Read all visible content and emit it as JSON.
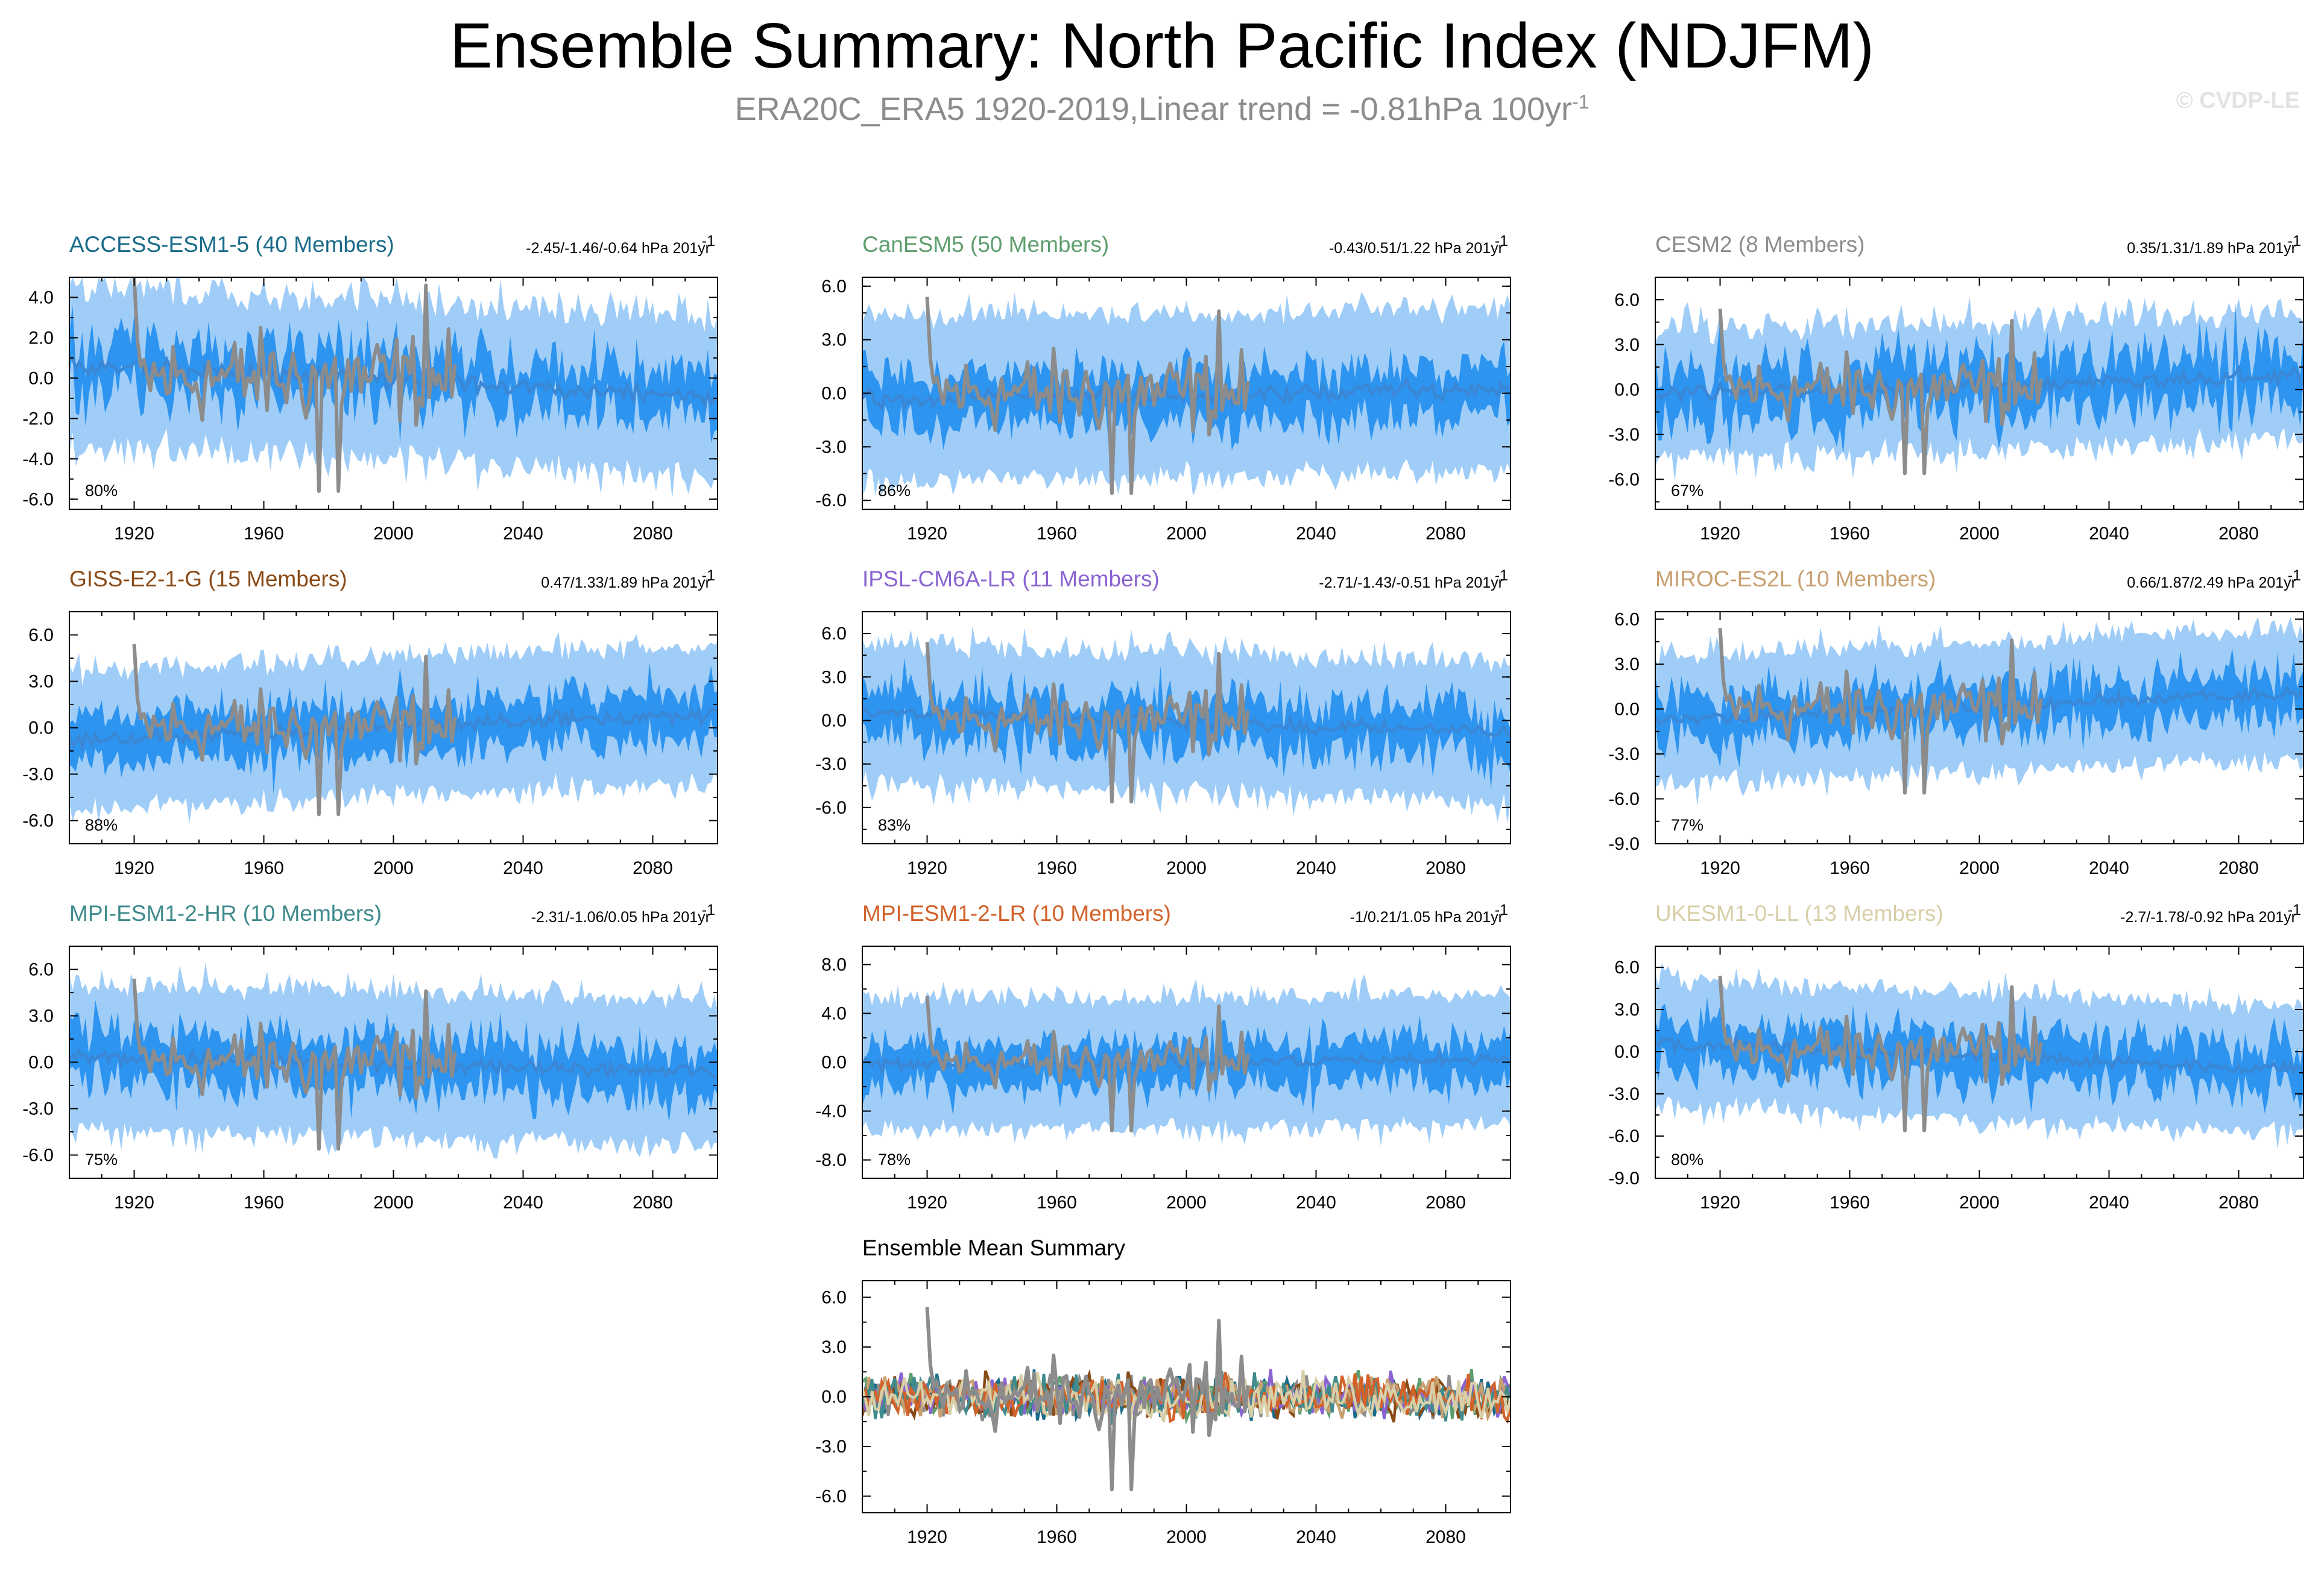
{
  "title": "Ensemble Summary: North Pacific Index (NDJFM)",
  "subtitle_text": "ERA20C_ERA5 1920-2019,Linear trend = -0.81hPa 100yr",
  "subtitle_sup": "-1",
  "copyright": "© CVDP-LE",
  "colors": {
    "outer_band": "#9fcdf7",
    "inner_band": "#2d94f0",
    "ensemble_mean": "#3a87d6",
    "observations": "#8c8c8c"
  },
  "chart_data": [
    {
      "type": "area",
      "model": "ACCESS-ESM1-5 (40 Members)",
      "title_color": "#1a6b8a",
      "trend_text": "-2.45/-1.46/-0.64 hPa 201yr",
      "trend_sup": "-1",
      "percent_label": "80%",
      "xlim": [
        1900,
        2100
      ],
      "xticks": [
        "1920",
        "1960",
        "2000",
        "2040",
        "2080"
      ],
      "ylim": [
        -6.5,
        5
      ],
      "yticks": [
        "-6.0",
        "-4.0",
        "-2.0",
        "0.0",
        "2.0",
        "4.0"
      ],
      "ensemble_mean_trend": [
        0.6,
        -0.9
      ],
      "outer_spread": 3.4,
      "inner_spread": 1.5,
      "variability": 1.1
    },
    {
      "type": "area",
      "model": "CanESM5 (50 Members)",
      "title_color": "#5e9e6e",
      "trend_text": "-0.43/0.51/1.22 hPa 201yr",
      "trend_sup": "-1",
      "percent_label": "86%",
      "xlim": [
        1900,
        2100
      ],
      "xticks": [
        "1920",
        "1960",
        "2000",
        "2040",
        "2080"
      ],
      "ylim": [
        -6.5,
        6.5
      ],
      "yticks": [
        "-6.0",
        "-3.0",
        "0.0",
        "3.0",
        "6.0"
      ],
      "ensemble_mean_trend": [
        -0.3,
        0.2
      ],
      "outer_spread": 4.2,
      "inner_spread": 1.9,
      "variability": 0.8
    },
    {
      "type": "area",
      "model": "CESM2 (8 Members)",
      "title_color": "#8c8c8c",
      "trend_text": "0.35/1.31/1.89 hPa 201yr",
      "trend_sup": "-1",
      "percent_label": "67%",
      "xlim": [
        1900,
        2100
      ],
      "xticks": [
        "1920",
        "1960",
        "2000",
        "2040",
        "2080"
      ],
      "ylim": [
        -8,
        7.5
      ],
      "yticks": [
        "-6.0",
        "-3.0",
        "0.0",
        "3.0",
        "6.0"
      ],
      "ensemble_mean_trend": [
        -0.4,
        0.9
      ],
      "outer_spread": 3.6,
      "inner_spread": 2.4,
      "variability": 1.5
    },
    {
      "type": "area",
      "model": "GISS-E2-1-G (15 Members)",
      "title_color": "#8a4a16",
      "trend_text": "0.47/1.33/1.89 hPa 201yr",
      "trend_sup": "-1",
      "percent_label": "88%",
      "xlim": [
        1900,
        2100
      ],
      "xticks": [
        "1920",
        "1960",
        "2000",
        "2040",
        "2080"
      ],
      "ylim": [
        -7.5,
        7.5
      ],
      "yticks": [
        "-6.0",
        "-3.0",
        "0.0",
        "3.0",
        "6.0"
      ],
      "ensemble_mean_trend": [
        -0.8,
        0.9
      ],
      "outer_spread": 4.0,
      "inner_spread": 2.1,
      "variability": 1.0
    },
    {
      "type": "area",
      "model": "IPSL-CM6A-LR (11 Members)",
      "title_color": "#8a63d2",
      "trend_text": "-2.71/-1.43/-0.51 hPa 201yr",
      "trend_sup": "-1",
      "percent_label": "83%",
      "xlim": [
        1900,
        2100
      ],
      "xticks": [
        "1920",
        "1960",
        "2000",
        "2040",
        "2080"
      ],
      "ylim": [
        -8.5,
        7.5
      ],
      "yticks": [
        "-6.0",
        "-3.0",
        "0.0",
        "3.0",
        "6.0"
      ],
      "ensemble_mean_trend": [
        0.6,
        -0.8
      ],
      "outer_spread": 4.2,
      "inner_spread": 2.2,
      "variability": 1.3
    },
    {
      "type": "area",
      "model": "MIROC-ES2L (10 Members)",
      "title_color": "#c8a070",
      "trend_text": "0.66/1.87/2.49 hPa 201yr",
      "trend_sup": "-1",
      "percent_label": "77%",
      "xlim": [
        1900,
        2100
      ],
      "xticks": [
        "1920",
        "1960",
        "2000",
        "2040",
        "2080"
      ],
      "ylim": [
        -9,
        6.5
      ],
      "yticks": [
        "-9.0",
        "-6.0",
        "-3.0",
        "0.0",
        "3.0",
        "6.0"
      ],
      "ensemble_mean_trend": [
        -0.8,
        1.1
      ],
      "outer_spread": 3.8,
      "inner_spread": 2.0,
      "variability": 1.1
    },
    {
      "type": "area",
      "model": "MPI-ESM1-2-HR (10 Members)",
      "title_color": "#3f8a8c",
      "trend_text": "-2.31/-1.06/0.05 hPa 201yr",
      "trend_sup": "-1",
      "percent_label": "75%",
      "xlim": [
        1900,
        2100
      ],
      "xticks": [
        "1920",
        "1960",
        "2000",
        "2040",
        "2080"
      ],
      "ylim": [
        -7.5,
        7.5
      ],
      "yticks": [
        "-6.0",
        "-3.0",
        "0.0",
        "3.0",
        "6.0"
      ],
      "ensemble_mean_trend": [
        0.4,
        -0.6
      ],
      "outer_spread": 4.2,
      "inner_spread": 2.2,
      "variability": 1.1
    },
    {
      "type": "area",
      "model": "MPI-ESM1-2-LR (10 Members)",
      "title_color": "#d2622a",
      "trend_text": "-1/0.21/1.05 hPa 201yr",
      "trend_sup": "-1",
      "percent_label": "78%",
      "xlim": [
        1900,
        2100
      ],
      "xticks": [
        "1920",
        "1960",
        "2000",
        "2040",
        "2080"
      ],
      "ylim": [
        -9.5,
        9.5
      ],
      "yticks": [
        "-8.0",
        "-4.0",
        "0.0",
        "4.0",
        "8.0"
      ],
      "ensemble_mean_trend": [
        -0.2,
        0.2
      ],
      "outer_spread": 4.8,
      "inner_spread": 2.4,
      "variability": 1.2
    },
    {
      "type": "area",
      "model": "UKESM1-0-LL (13 Members)",
      "title_color": "#d8cfa8",
      "trend_text": "-2.7/-1.78/-0.92 hPa 201yr",
      "trend_sup": "-1",
      "percent_label": "80%",
      "xlim": [
        1900,
        2100
      ],
      "xticks": [
        "1920",
        "1960",
        "2000",
        "2040",
        "2080"
      ],
      "ylim": [
        -9,
        7.5
      ],
      "yticks": [
        "-9.0",
        "-6.0",
        "-3.0",
        "0.0",
        "3.0",
        "6.0"
      ],
      "ensemble_mean_trend": [
        0.7,
        -1.3
      ],
      "outer_spread": 4.0,
      "inner_spread": 2.2,
      "variability": 1.1
    },
    {
      "type": "line",
      "model": "Ensemble Mean Summary",
      "title_color": "#000000",
      "xlim": [
        1900,
        2100
      ],
      "xticks": [
        "1920",
        "1960",
        "2000",
        "2040",
        "2080"
      ],
      "ylim": [
        -7,
        7
      ],
      "yticks": [
        "-6.0",
        "-3.0",
        "0.0",
        "3.0",
        "6.0"
      ],
      "series_colors": [
        "#1a6b8a",
        "#5e9e6e",
        "#8c8c8c",
        "#8a4a16",
        "#8a63d2",
        "#c8a070",
        "#3f8a8c",
        "#d2622a",
        "#d8cfa8"
      ]
    }
  ]
}
